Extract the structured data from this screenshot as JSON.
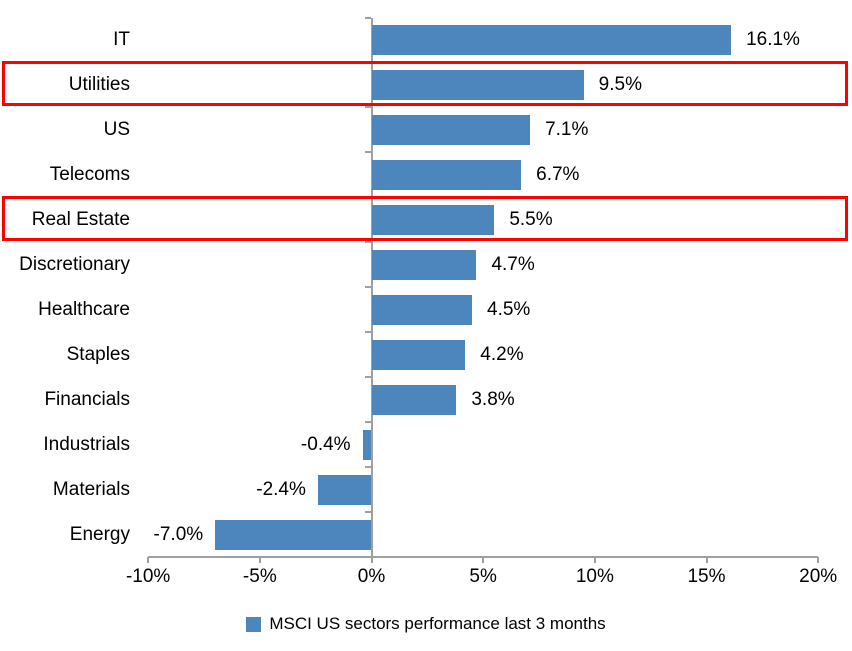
{
  "chart_data": {
    "type": "bar",
    "orientation": "horizontal",
    "title": "",
    "categories": [
      "IT",
      "Utilities",
      "US",
      "Telecoms",
      "Real Estate",
      "Discretionary",
      "Healthcare",
      "Staples",
      "Financials",
      "Industrials",
      "Materials",
      "Energy"
    ],
    "values": [
      16.1,
      9.5,
      7.1,
      6.7,
      5.5,
      4.7,
      4.5,
      4.2,
      3.8,
      -0.4,
      -2.4,
      -7.0
    ],
    "value_labels": [
      "16.1%",
      "9.5%",
      "7.1%",
      "6.7%",
      "5.5%",
      "4.7%",
      "4.5%",
      "4.2%",
      "3.8%",
      "-0.4%",
      "-2.4%",
      "-7.0%"
    ],
    "highlighted_categories": [
      "Utilities",
      "Real Estate"
    ],
    "x_tick_labels": [
      "-10%",
      "-5%",
      "0%",
      "5%",
      "10%",
      "15%",
      "20%"
    ],
    "x_tick_values": [
      -10,
      -5,
      0,
      5,
      10,
      15,
      20
    ],
    "xlim": [
      -10,
      20
    ],
    "grid": false,
    "legend_position": "bottom",
    "legend": "MSCI US sectors performance last 3 months",
    "bar_color": "#4d86bc",
    "highlight_color": "#ff0000",
    "axis_color": "#a0a0a0"
  }
}
